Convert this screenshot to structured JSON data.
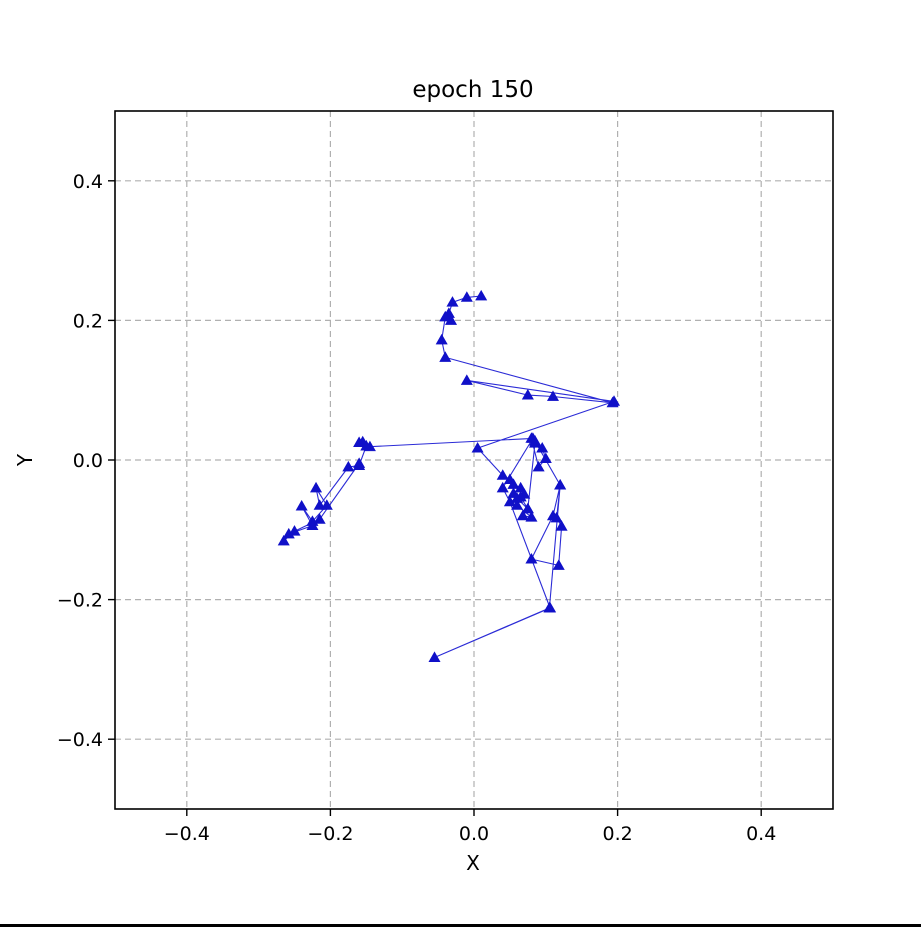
{
  "chart_data": {
    "type": "line",
    "title": "epoch  150",
    "xlabel": "X",
    "ylabel": "Y",
    "xlim": [
      -0.5,
      0.5
    ],
    "ylim": [
      -0.5,
      0.5
    ],
    "xticks": [
      -0.4,
      -0.2,
      0.0,
      0.2,
      0.4
    ],
    "yticks": [
      -0.4,
      -0.2,
      0.0,
      0.2,
      0.4
    ],
    "xtick_labels": [
      "−0.4",
      "−0.2",
      "0.0",
      "0.2",
      "0.4"
    ],
    "ytick_labels": [
      "−0.4",
      "−0.2",
      "0.0",
      "0.2",
      "0.4"
    ],
    "grid": true,
    "marker": "triangle",
    "line_color": "#2b2bd6",
    "marker_color": "#1010c8",
    "series": [
      {
        "x": [
          0.01,
          -0.01,
          -0.03,
          -0.035,
          -0.032,
          -0.04,
          -0.045,
          -0.04,
          0.193,
          0.11,
          0.075,
          -0.01,
          0.195,
          0.005,
          0.04,
          0.05,
          0.055,
          0.065,
          0.07,
          0.06,
          0.075,
          0.068,
          0.08,
          0.06,
          0.055,
          0.065,
          0.075,
          0.085,
          0.095,
          0.1,
          0.09,
          0.08,
          0.085,
          0.12,
          0.115,
          0.122,
          0.118,
          0.08,
          0.11,
          0.12,
          0.105,
          -0.055,
          0.106,
          0.05,
          0.04,
          0.082,
          -0.145,
          -0.155,
          -0.16,
          -0.15,
          -0.16,
          -0.175,
          -0.215,
          -0.22,
          -0.205,
          -0.225,
          -0.24,
          -0.225,
          -0.258,
          -0.265,
          -0.25,
          -0.215,
          -0.16
        ],
        "y": [
          0.235,
          0.233,
          0.226,
          0.21,
          0.2,
          0.205,
          0.172,
          0.147,
          0.082,
          0.091,
          0.093,
          0.114,
          0.084,
          0.017,
          -0.022,
          -0.028,
          -0.035,
          -0.04,
          -0.049,
          -0.055,
          -0.07,
          -0.08,
          -0.082,
          -0.065,
          -0.048,
          -0.053,
          -0.07,
          0.024,
          0.017,
          0.002,
          -0.01,
          0.031,
          0.027,
          -0.036,
          -0.083,
          -0.095,
          -0.151,
          -0.142,
          -0.08,
          -0.036,
          -0.212,
          -0.283,
          -0.212,
          -0.06,
          -0.04,
          0.031,
          0.019,
          0.026,
          0.025,
          0.02,
          -0.008,
          -0.01,
          -0.065,
          -0.04,
          -0.065,
          -0.088,
          -0.066,
          -0.094,
          -0.106,
          -0.116,
          -0.102,
          -0.085,
          -0.005
        ]
      }
    ]
  }
}
